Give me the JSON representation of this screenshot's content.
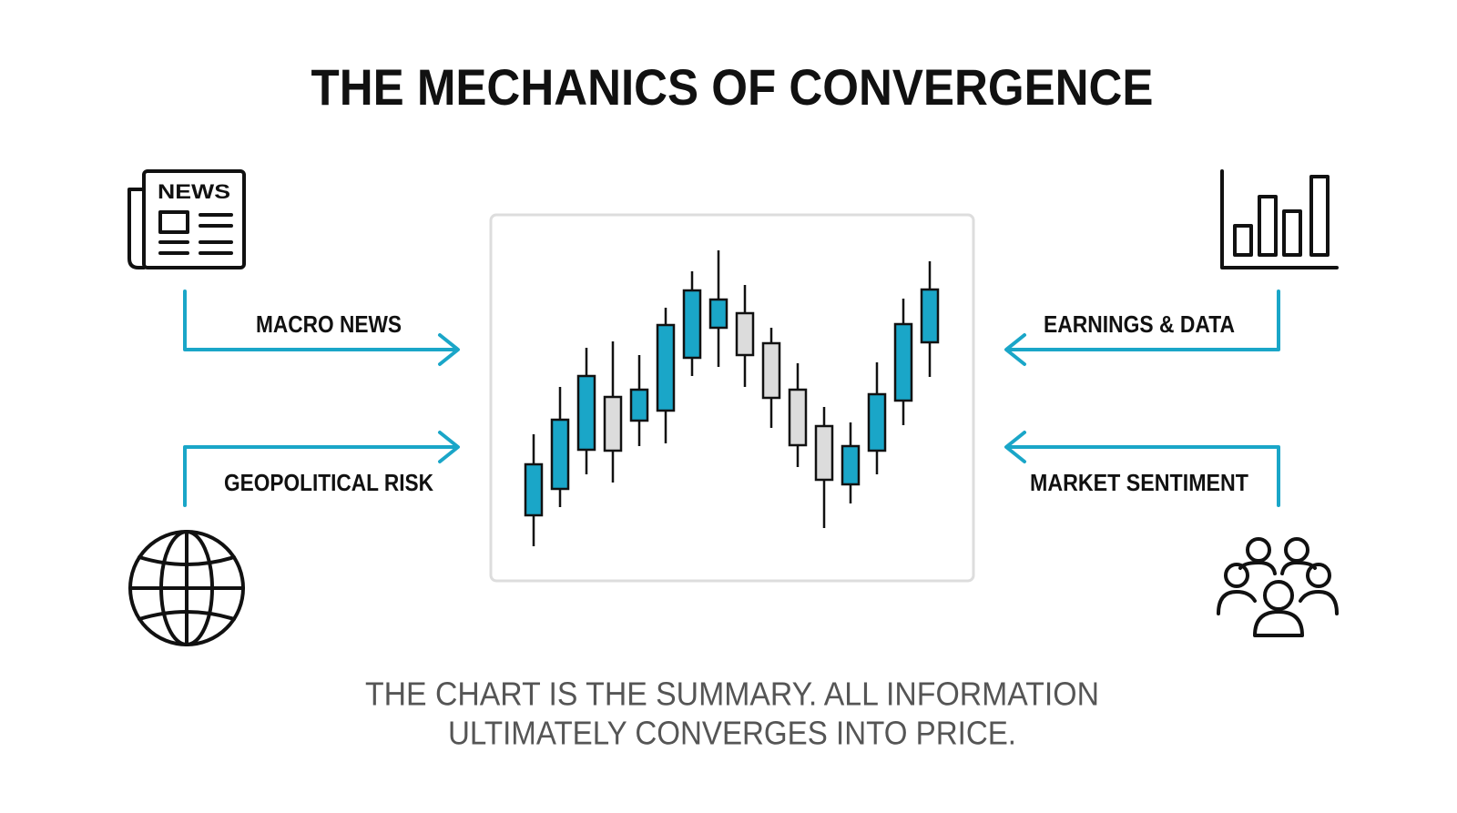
{
  "header": {
    "title": "THE MECHANICS OF CONVERGENCE"
  },
  "icons": {
    "news_label": "NEWS"
  },
  "inputs": [
    {
      "label": "MACRO NEWS"
    },
    {
      "label": "GEOPOLITICAL RISK"
    },
    {
      "label": "EARNINGS & DATA"
    },
    {
      "label": "MARKET SENTIMENT"
    }
  ],
  "caption": {
    "lines": [
      "THE CHART IS THE SUMMARY. ALL INFORMATION",
      "ULTIMATELY CONVERGES INTO PRICE."
    ]
  }
}
